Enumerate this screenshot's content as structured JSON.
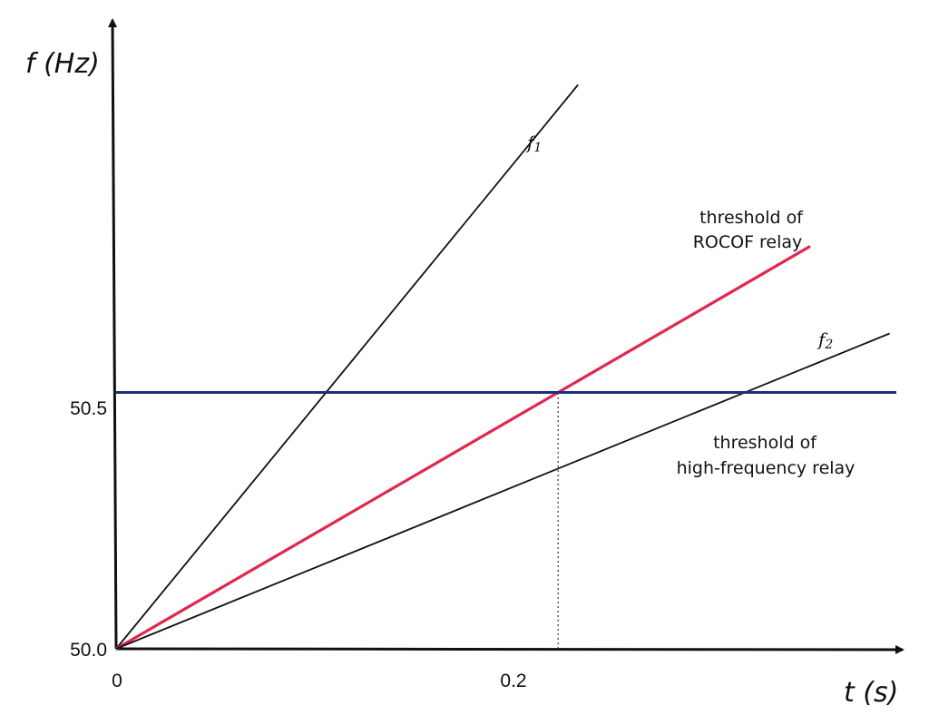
{
  "chart_data": {
    "type": "line",
    "xlabel": "t (s)",
    "ylabel": "f (Hz)",
    "x_ticks": [
      "0",
      "0.2"
    ],
    "y_ticks": [
      "50.0",
      "50.5"
    ],
    "xlim": [
      0,
      0.36
    ],
    "ylim": [
      50.0,
      51.23
    ],
    "grid": false,
    "series": [
      {
        "name": "f1",
        "color": "#111111",
        "points": [
          [
            0,
            50.0
          ],
          [
            0.209,
            51.1
          ]
        ]
      },
      {
        "name": "threshold of ROCOF relay",
        "color": "#e0284f",
        "points": [
          [
            0,
            50.0
          ],
          [
            0.314,
            50.785
          ]
        ]
      },
      {
        "name": "f2",
        "color": "#111111",
        "points": [
          [
            0,
            50.0
          ],
          [
            0.35,
            50.615
          ]
        ]
      },
      {
        "name": "threshold of high-frequency relay",
        "color": "#1b2f80",
        "points": [
          [
            0,
            50.5
          ],
          [
            0.353,
            50.5
          ]
        ]
      }
    ],
    "reference_lines": [
      {
        "name": "crossing-time",
        "x": 0.2,
        "y_from": 50.0,
        "y_to": 50.5,
        "style": "dotted"
      }
    ],
    "labels": {
      "f1": {
        "main": "f",
        "sub": "1"
      },
      "f2": {
        "main": "f",
        "sub": "2"
      },
      "rocof": [
        "threshold of",
        "ROCOF relay"
      ],
      "high_freq": [
        "threshold of",
        "high-frequency relay"
      ]
    }
  }
}
